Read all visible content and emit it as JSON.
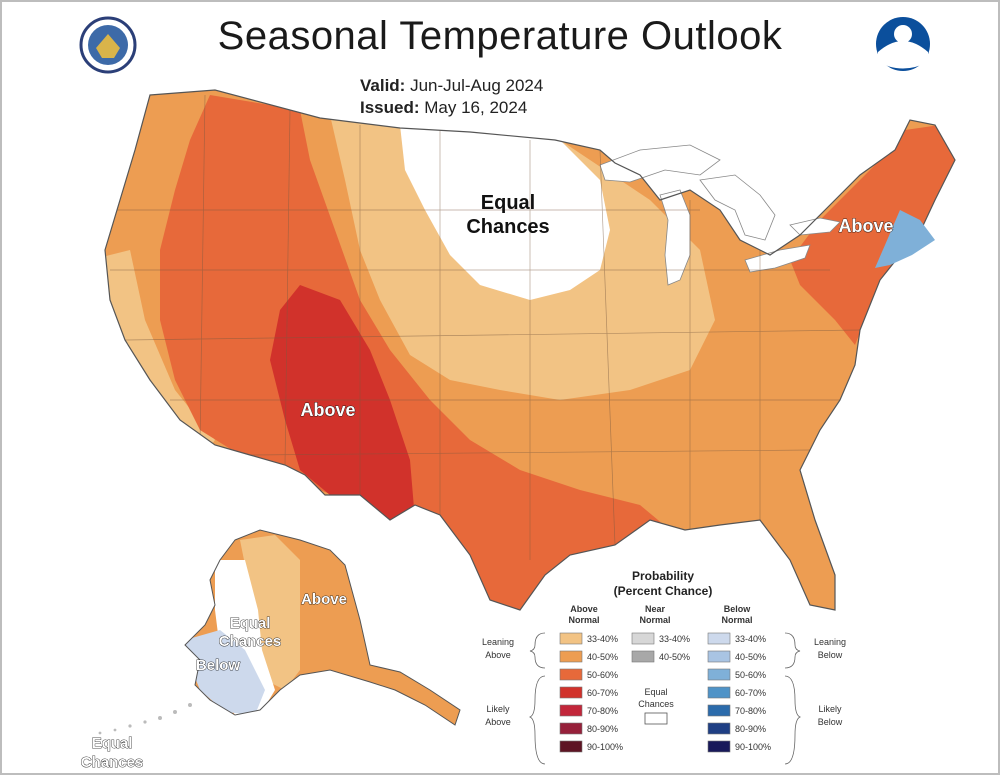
{
  "header": {
    "title": "Seasonal Temperature Outlook",
    "valid_label": "Valid:",
    "valid_value": "Jun-Jul-Aug 2024",
    "issued_label": "Issued:",
    "issued_value": "May 16, 2024"
  },
  "logos": {
    "left": "noaa-seal-icon",
    "right": "noaa-logo-icon"
  },
  "map_labels": {
    "equal_chances_north_1": "Equal",
    "equal_chances_north_2": "Chances",
    "above_southwest": "Above",
    "above_northeast": "Above",
    "alaska_above": "Above",
    "alaska_equal_1": "Equal",
    "alaska_equal_2": "Chances",
    "alaska_below": "Below",
    "alaska_equal_sw_1": "Equal",
    "alaska_equal_sw_2": "Chances"
  },
  "colors": {
    "above_33_40": "#f2c384",
    "above_40_50": "#ed9d52",
    "above_50_60": "#e7693a",
    "above_60_70": "#d1322b",
    "above_70_80": "#c2263a",
    "above_80_90": "#96203a",
    "above_90_100": "#5e1424",
    "below_33_40": "#cdd9ec",
    "below_40_50": "#a9c4e3",
    "below_50_60": "#7fb0d8",
    "below_60_70": "#4f93c7",
    "below_70_80": "#2b6bab",
    "below_80_90": "#1f3f84",
    "below_90_100": "#18195a",
    "near_33_40": "#d7d7d7",
    "near_40_50": "#a8a8a8",
    "equal_chances": "#ffffff",
    "border": "#555555",
    "lakes": "#ffffff"
  },
  "legend": {
    "title_1": "Probability",
    "title_2": "(Percent Chance)",
    "col_above_1": "Above",
    "col_above_2": "Normal",
    "col_near_1": "Near",
    "col_near_2": "Normal",
    "col_below_1": "Below",
    "col_below_2": "Normal",
    "leaning_above_1": "Leaning",
    "leaning_above_2": "Above",
    "likely_above_1": "Likely",
    "likely_above_2": "Above",
    "leaning_below_1": "Leaning",
    "leaning_below_2": "Below",
    "likely_below_1": "Likely",
    "likely_below_2": "Below",
    "equal_1": "Equal",
    "equal_2": "Chances",
    "above_ranges": [
      "33-40%",
      "40-50%",
      "50-60%",
      "60-70%",
      "70-80%",
      "80-90%",
      "90-100%"
    ],
    "near_ranges": [
      "33-40%",
      "40-50%"
    ],
    "below_ranges": [
      "33-40%",
      "40-50%",
      "50-60%",
      "60-70%",
      "70-80%",
      "80-90%",
      "90-100%"
    ]
  }
}
